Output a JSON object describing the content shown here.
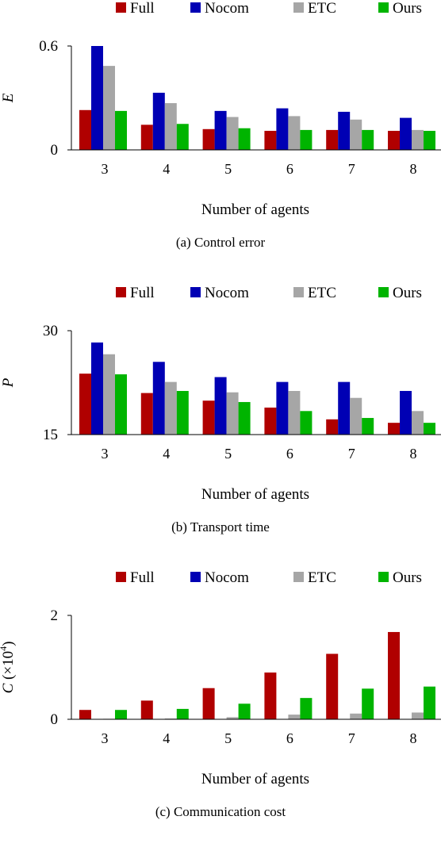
{
  "colors": {
    "Full": "#b00000",
    "Nocom": "#0000b4",
    "ETC": "#a6a6a6",
    "Ours": "#00b400",
    "axis": "#000000"
  },
  "chart_data": [
    {
      "type": "bar",
      "caption": "(a)  Control error",
      "xlabel": "Number of agents",
      "ylabel": "E",
      "ylabel_sup": "",
      "ylim": [
        0,
        0.6
      ],
      "yticks": [
        "0",
        "0.6"
      ],
      "ytick_values": [
        0,
        0.6
      ],
      "categories": [
        "3",
        "4",
        "5",
        "6",
        "7",
        "8"
      ],
      "legend": "top",
      "grid": false,
      "series": [
        {
          "name": "Full",
          "values": [
            0.23,
            0.145,
            0.12,
            0.11,
            0.115,
            0.11
          ]
        },
        {
          "name": "Nocom",
          "values": [
            0.6,
            0.33,
            0.225,
            0.24,
            0.22,
            0.185
          ]
        },
        {
          "name": "ETC",
          "values": [
            0.485,
            0.27,
            0.19,
            0.195,
            0.175,
            0.115
          ]
        },
        {
          "name": "Ours",
          "values": [
            0.225,
            0.15,
            0.125,
            0.115,
            0.115,
            0.11
          ]
        }
      ]
    },
    {
      "type": "bar",
      "caption": "(b)  Transport time",
      "xlabel": "Number of agents",
      "ylabel": "P",
      "ylabel_sup": "",
      "ylim": [
        15,
        30
      ],
      "yticks": [
        "15",
        "30"
      ],
      "ytick_values": [
        15,
        30
      ],
      "categories": [
        "3",
        "4",
        "5",
        "6",
        "7",
        "8"
      ],
      "legend": "top",
      "grid": false,
      "series": [
        {
          "name": "Full",
          "values": [
            23.8,
            21.0,
            19.9,
            18.9,
            17.2,
            16.7
          ]
        },
        {
          "name": "Nocom",
          "values": [
            28.3,
            25.5,
            23.3,
            22.6,
            22.6,
            21.3
          ]
        },
        {
          "name": "ETC",
          "values": [
            26.6,
            22.6,
            21.1,
            21.3,
            20.3,
            18.4
          ]
        },
        {
          "name": "Ours",
          "values": [
            23.7,
            21.3,
            19.7,
            18.4,
            17.4,
            16.7
          ]
        }
      ]
    },
    {
      "type": "bar",
      "caption": "(c)  Communication cost",
      "xlabel": "Number of agents",
      "ylabel": "C (×10",
      "ylabel_sup": "4",
      "ylabel_end": ")",
      "ylim": [
        0,
        2
      ],
      "yticks": [
        "0",
        "2"
      ],
      "ytick_values": [
        0,
        2
      ],
      "categories": [
        "3",
        "4",
        "5",
        "6",
        "7",
        "8"
      ],
      "legend": "top",
      "grid": false,
      "series": [
        {
          "name": "Full",
          "values": [
            0.18,
            0.36,
            0.6,
            0.9,
            1.26,
            1.68
          ]
        },
        {
          "name": "Nocom",
          "values": [
            0,
            0,
            0,
            0,
            0,
            0
          ]
        },
        {
          "name": "ETC",
          "values": [
            0.01,
            0.015,
            0.04,
            0.09,
            0.11,
            0.13
          ]
        },
        {
          "name": "Ours",
          "values": [
            0.18,
            0.2,
            0.3,
            0.41,
            0.59,
            0.63
          ]
        }
      ]
    }
  ]
}
